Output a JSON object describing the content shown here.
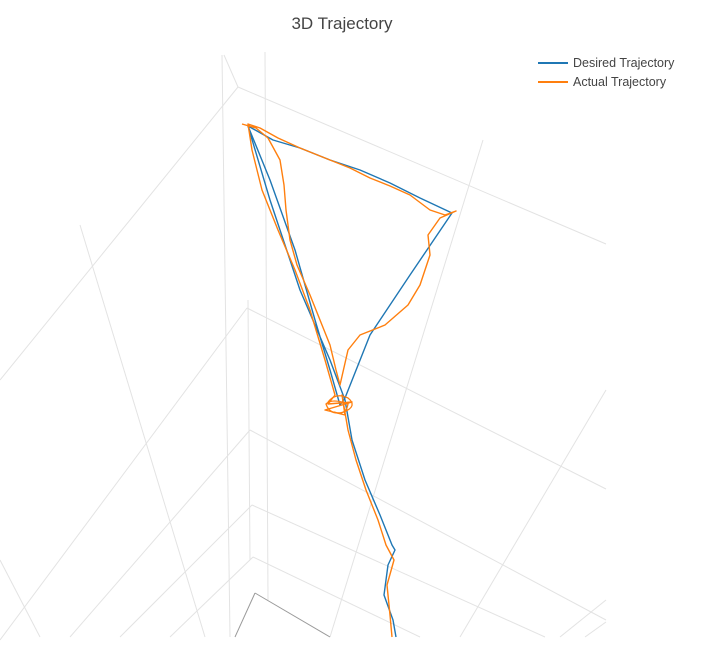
{
  "chart_data": {
    "type": "line",
    "title": "3D Trajectory",
    "grid": true,
    "legend_placement": "top-right",
    "series": [
      {
        "name": "Desired Trajectory",
        "color": "#1f77b4",
        "points": [
          [
            0.4,
            0.06
          ],
          [
            0.5,
            0.55
          ],
          [
            0.6,
            0.9
          ],
          [
            0.75,
            0.45
          ],
          [
            0.85,
            0.08
          ],
          [
            0.4,
            0.06
          ],
          [
            0.45,
            0.4
          ],
          [
            0.43,
            0.1
          ]
        ]
      },
      {
        "name": "Actual Trajectory",
        "color": "#ff7f0e",
        "points": [
          [
            0.4,
            0.07
          ],
          [
            0.52,
            0.54
          ],
          [
            0.62,
            0.88
          ],
          [
            0.72,
            0.48
          ],
          [
            0.84,
            0.1
          ],
          [
            0.41,
            0.05
          ],
          [
            0.46,
            0.38
          ],
          [
            0.44,
            0.12
          ]
        ]
      }
    ]
  }
}
